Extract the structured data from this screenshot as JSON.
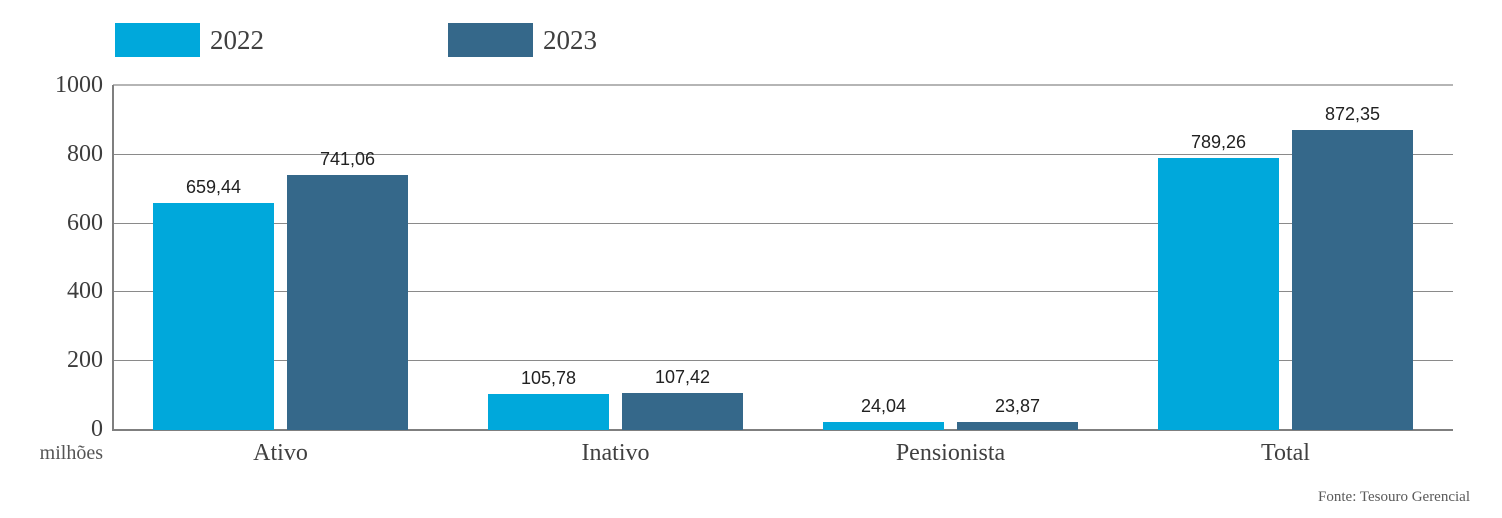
{
  "legend": {
    "items": [
      {
        "label": "2022",
        "color": "#00a8db"
      },
      {
        "label": "2023",
        "color": "#35688a"
      }
    ]
  },
  "y_axis": {
    "unit_label": "milhões",
    "ticks": [
      "1000",
      "800",
      "600",
      "400",
      "200",
      "0"
    ]
  },
  "footer": {
    "source": "Fonte: Tesouro Gerencial"
  },
  "chart_data": {
    "type": "bar",
    "title": "",
    "categories": [
      "Ativo",
      "Inativo",
      "Pensionista",
      "Total"
    ],
    "series": [
      {
        "name": "2022",
        "color": "#00a8db",
        "values": [
          659.44,
          105.78,
          24.04,
          789.26
        ],
        "labels": [
          "659,44",
          "105,78",
          "24,04",
          "789,26"
        ]
      },
      {
        "name": "2023",
        "color": "#35688a",
        "values": [
          741.06,
          107.42,
          23.87,
          872.35
        ],
        "labels": [
          "741,06",
          "107,42",
          "23,87",
          "872,35"
        ]
      }
    ],
    "xlabel": "",
    "ylabel": "milhões",
    "ylim": [
      0,
      1000
    ],
    "y_tick_step": 200,
    "grid": true,
    "legend_position": "top-left",
    "annotations": [
      "Fonte: Tesouro Gerencial"
    ]
  }
}
